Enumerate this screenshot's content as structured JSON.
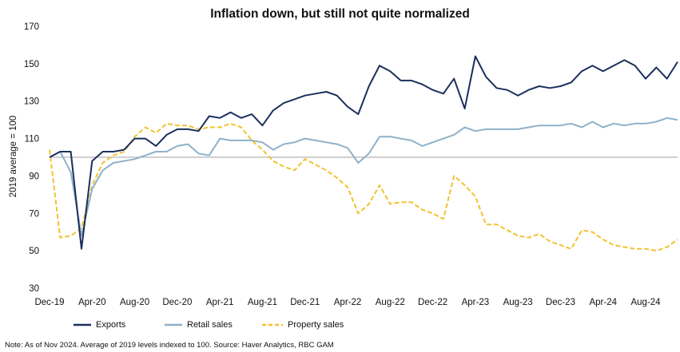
{
  "chart_data": {
    "type": "line",
    "title": "Inflation down, but still not quite normalized",
    "ylabel": "2019 average = 100",
    "xlabel": "",
    "ylim": [
      30,
      170
    ],
    "yticks": [
      30,
      50,
      70,
      90,
      110,
      130,
      150,
      170
    ],
    "reference_line": 100,
    "x": [
      "Dec-19",
      "Jan-20",
      "Feb-20",
      "Mar-20",
      "Apr-20",
      "May-20",
      "Jun-20",
      "Jul-20",
      "Aug-20",
      "Sep-20",
      "Oct-20",
      "Nov-20",
      "Dec-20",
      "Jan-21",
      "Feb-21",
      "Mar-21",
      "Apr-21",
      "May-21",
      "Jun-21",
      "Jul-21",
      "Aug-21",
      "Sep-21",
      "Oct-21",
      "Nov-21",
      "Dec-21",
      "Jan-22",
      "Feb-22",
      "Mar-22",
      "Apr-22",
      "May-22",
      "Jun-22",
      "Jul-22",
      "Aug-22",
      "Sep-22",
      "Oct-22",
      "Nov-22",
      "Dec-22",
      "Jan-23",
      "Feb-23",
      "Mar-23",
      "Apr-23",
      "May-23",
      "Jun-23",
      "Jul-23",
      "Aug-23",
      "Sep-23",
      "Oct-23",
      "Nov-23",
      "Dec-23",
      "Jan-24",
      "Feb-24",
      "Mar-24",
      "Apr-24",
      "May-24",
      "Jun-24",
      "Jul-24",
      "Aug-24",
      "Sep-24",
      "Oct-24",
      "Nov-24"
    ],
    "x_tick_labels": [
      "Dec-19",
      "Apr-20",
      "Aug-20",
      "Dec-20",
      "Apr-21",
      "Aug-21",
      "Dec-21",
      "Apr-22",
      "Aug-22",
      "Dec-22",
      "Apr-23",
      "Aug-23",
      "Dec-23",
      "Apr-24",
      "Aug-24"
    ],
    "series": [
      {
        "name": "Exports",
        "color": "#1b2f5c",
        "style": "solid",
        "values": [
          100,
          103,
          103,
          51,
          98,
          103,
          103,
          104,
          110,
          110,
          106,
          112,
          115,
          115,
          114,
          122,
          121,
          124,
          121,
          123,
          117,
          125,
          129,
          131,
          133,
          134,
          135,
          133,
          127,
          123,
          138,
          149,
          146,
          141,
          141,
          139,
          136,
          134,
          142,
          126,
          154,
          143,
          137,
          136,
          133,
          136,
          138,
          137,
          138,
          140,
          146,
          149,
          146,
          149,
          152,
          149,
          142,
          148,
          142,
          151
        ]
      },
      {
        "name": "Retail sales",
        "color": "#8eb1c9",
        "style": "solid",
        "values": [
          100,
          103,
          92,
          58,
          83,
          93,
          97,
          98,
          99,
          101,
          103,
          103,
          106,
          107,
          102,
          101,
          110,
          109,
          109,
          109,
          108,
          104,
          107,
          108,
          110,
          109,
          108,
          107,
          105,
          97,
          102,
          111,
          111,
          110,
          109,
          106,
          108,
          110,
          112,
          116,
          114,
          115,
          115,
          115,
          115,
          116,
          117,
          117,
          117,
          118,
          116,
          119,
          116,
          118,
          117,
          118,
          118,
          119,
          121,
          120
        ]
      },
      {
        "name": "Property sales",
        "color": "#f2c230",
        "style": "dashed",
        "values": [
          104,
          57,
          58,
          62,
          85,
          97,
          101,
          103,
          111,
          116,
          113,
          118,
          117,
          117,
          115,
          116,
          116,
          118,
          116,
          109,
          104,
          98,
          95,
          93,
          99,
          96,
          93,
          89,
          84,
          70,
          75,
          85,
          75,
          76,
          76,
          72,
          70,
          67,
          90,
          85,
          79,
          64,
          64,
          61,
          58,
          57,
          59,
          55,
          53,
          51,
          61,
          60,
          56,
          53,
          52,
          51,
          51,
          50,
          52,
          56
        ]
      }
    ],
    "legend": {
      "position": "bottom",
      "items": [
        "Exports",
        "Retail sales",
        "Property sales"
      ]
    },
    "grid": false,
    "footnote": "Note: As of Nov 2024. Average of 2019 levels indexed to 100. Source: Haver Analytics, RBC GAM"
  }
}
